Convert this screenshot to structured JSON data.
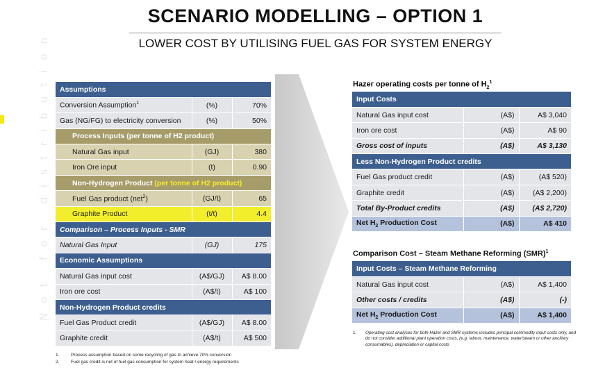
{
  "title": "SCENARIO MODELLING – OPTION 1",
  "subtitle": "LOWER COST BY UTILISING FUEL GAS FOR SYSTEM ENERGY",
  "watermark": "Not for distribution",
  "left_table": {
    "assumptions_header": "Assumptions",
    "conversion": {
      "label": "Conversion Assumption",
      "sup": "1",
      "unit": "(%)",
      "value": "70%"
    },
    "gas_to_elec": {
      "label": "Gas (NG/FG) to electricity conversion",
      "unit": "(%)",
      "value": "50%"
    },
    "process_inputs_header": "Process Inputs (per tonne of H2 product)",
    "natural_gas_input": {
      "label": "Natural Gas input",
      "unit": "(GJ)",
      "value": "380"
    },
    "iron_ore_input": {
      "label": "Iron Ore input",
      "unit": "(t)",
      "value": "0.90"
    },
    "non_h2_header_a": "Non-Hydrogen Product ",
    "non_h2_header_b": "(per tonne of H2 product)",
    "fuel_gas_product": {
      "label": "Fuel Gas product (net",
      "sup": "2",
      "label_end": ")",
      "unit": "(GJ/t)",
      "value": "65"
    },
    "graphite_product": {
      "label": "Graphite Product",
      "unit": "(t/t)",
      "value": "4.4"
    },
    "comparison_header": "Comparison – Process Inputs - SMR",
    "smr_natural_gas": {
      "label": "Natural Gas Input",
      "unit": "(GJ)",
      "value": "175"
    },
    "economic_header": "Economic Assumptions",
    "ng_input_cost": {
      "label": "Natural Gas input cost",
      "unit": "(A$/GJ)",
      "value": "A$ 8.00"
    },
    "iron_ore_cost": {
      "label": "Iron ore cost",
      "unit": "(A$/t)",
      "value": "A$ 100"
    },
    "credits_header": "Non-Hydrogen Product credits",
    "fuel_gas_credit": {
      "label": "Fuel Gas Product credit",
      "unit": "(A$/GJ)",
      "value": "A$ 8.00"
    },
    "graphite_credit": {
      "label": "Graphite credit",
      "unit": "(A$/t)",
      "value": "A$ 500"
    }
  },
  "hazer": {
    "title": "Hazer operating costs per tonne of H",
    "title_sub": "2",
    "title_sup": "1",
    "input_costs_header": "Input Costs",
    "ng_input_cost": {
      "label": "Natural Gas input cost",
      "unit": "(A$)",
      "value": "A$ 3,040"
    },
    "iron_ore_cost": {
      "label": "Iron ore cost",
      "unit": "(A$)",
      "value": "A$ 90"
    },
    "gross_cost": {
      "label": "Gross cost of inputs",
      "unit": "(A$)",
      "value": "A$ 3,130"
    },
    "credits_header": "Less Non-Hydrogen Product credits",
    "fuel_gas_credit": {
      "label": "Fuel Gas product credit",
      "unit": "(A$)",
      "value": "(A$ 520)"
    },
    "graphite_credit": {
      "label": "Graphite credit",
      "unit": "(A$)",
      "value": "(A$ 2,200)"
    },
    "total_byproduct": {
      "label": "Total By-Product credits",
      "unit": "(A$)",
      "value": "(A$ 2,720)"
    },
    "net_cost": {
      "label_a": "Net H",
      "label_sub": "2",
      "label_b": " Production Cost",
      "unit": "(A$)",
      "value": "A$ 410"
    }
  },
  "smr": {
    "title": "Comparison Cost – Steam Methane Reforming (SMR)",
    "title_sup": "1",
    "input_costs_header": "Input Costs – Steam Methane Reforming",
    "ng_input_cost": {
      "label": "Natural Gas input cost",
      "unit": "(A$)",
      "value": "A$ 1,400"
    },
    "other_costs": {
      "label": "Other costs / credits",
      "unit": "(A$)",
      "value": "(-)"
    },
    "net_cost": {
      "label_a": "Net H",
      "label_sub": "2",
      "label_b": " Production Cost",
      "unit": "(A$)",
      "value": "A$ 1,400"
    }
  },
  "footnotes_left": [
    {
      "num": "1.",
      "text": "Process assumption based on some recycling of gas to achieve 70% conversion"
    },
    {
      "num": "2.",
      "text": "Fuel gas credit is net of fuel gas consumption for system heat / energy requirements"
    }
  ],
  "footnote_right": {
    "num": "1.",
    "text": "Operating cost analyses for both Hazer and SMR systems includes principal commodity input costs only, and do not consider additional plant operation costs, (e.g. labour, maintenance, water/steam or other ancillary consumables), depreciation or capital costs"
  },
  "colors": {
    "header_blue": "#3d5f8f",
    "olive": "#a69c6a",
    "khaki": "#d8d2b0",
    "highlight": "#f3ee2c",
    "result_blue": "#b4c2dc"
  }
}
